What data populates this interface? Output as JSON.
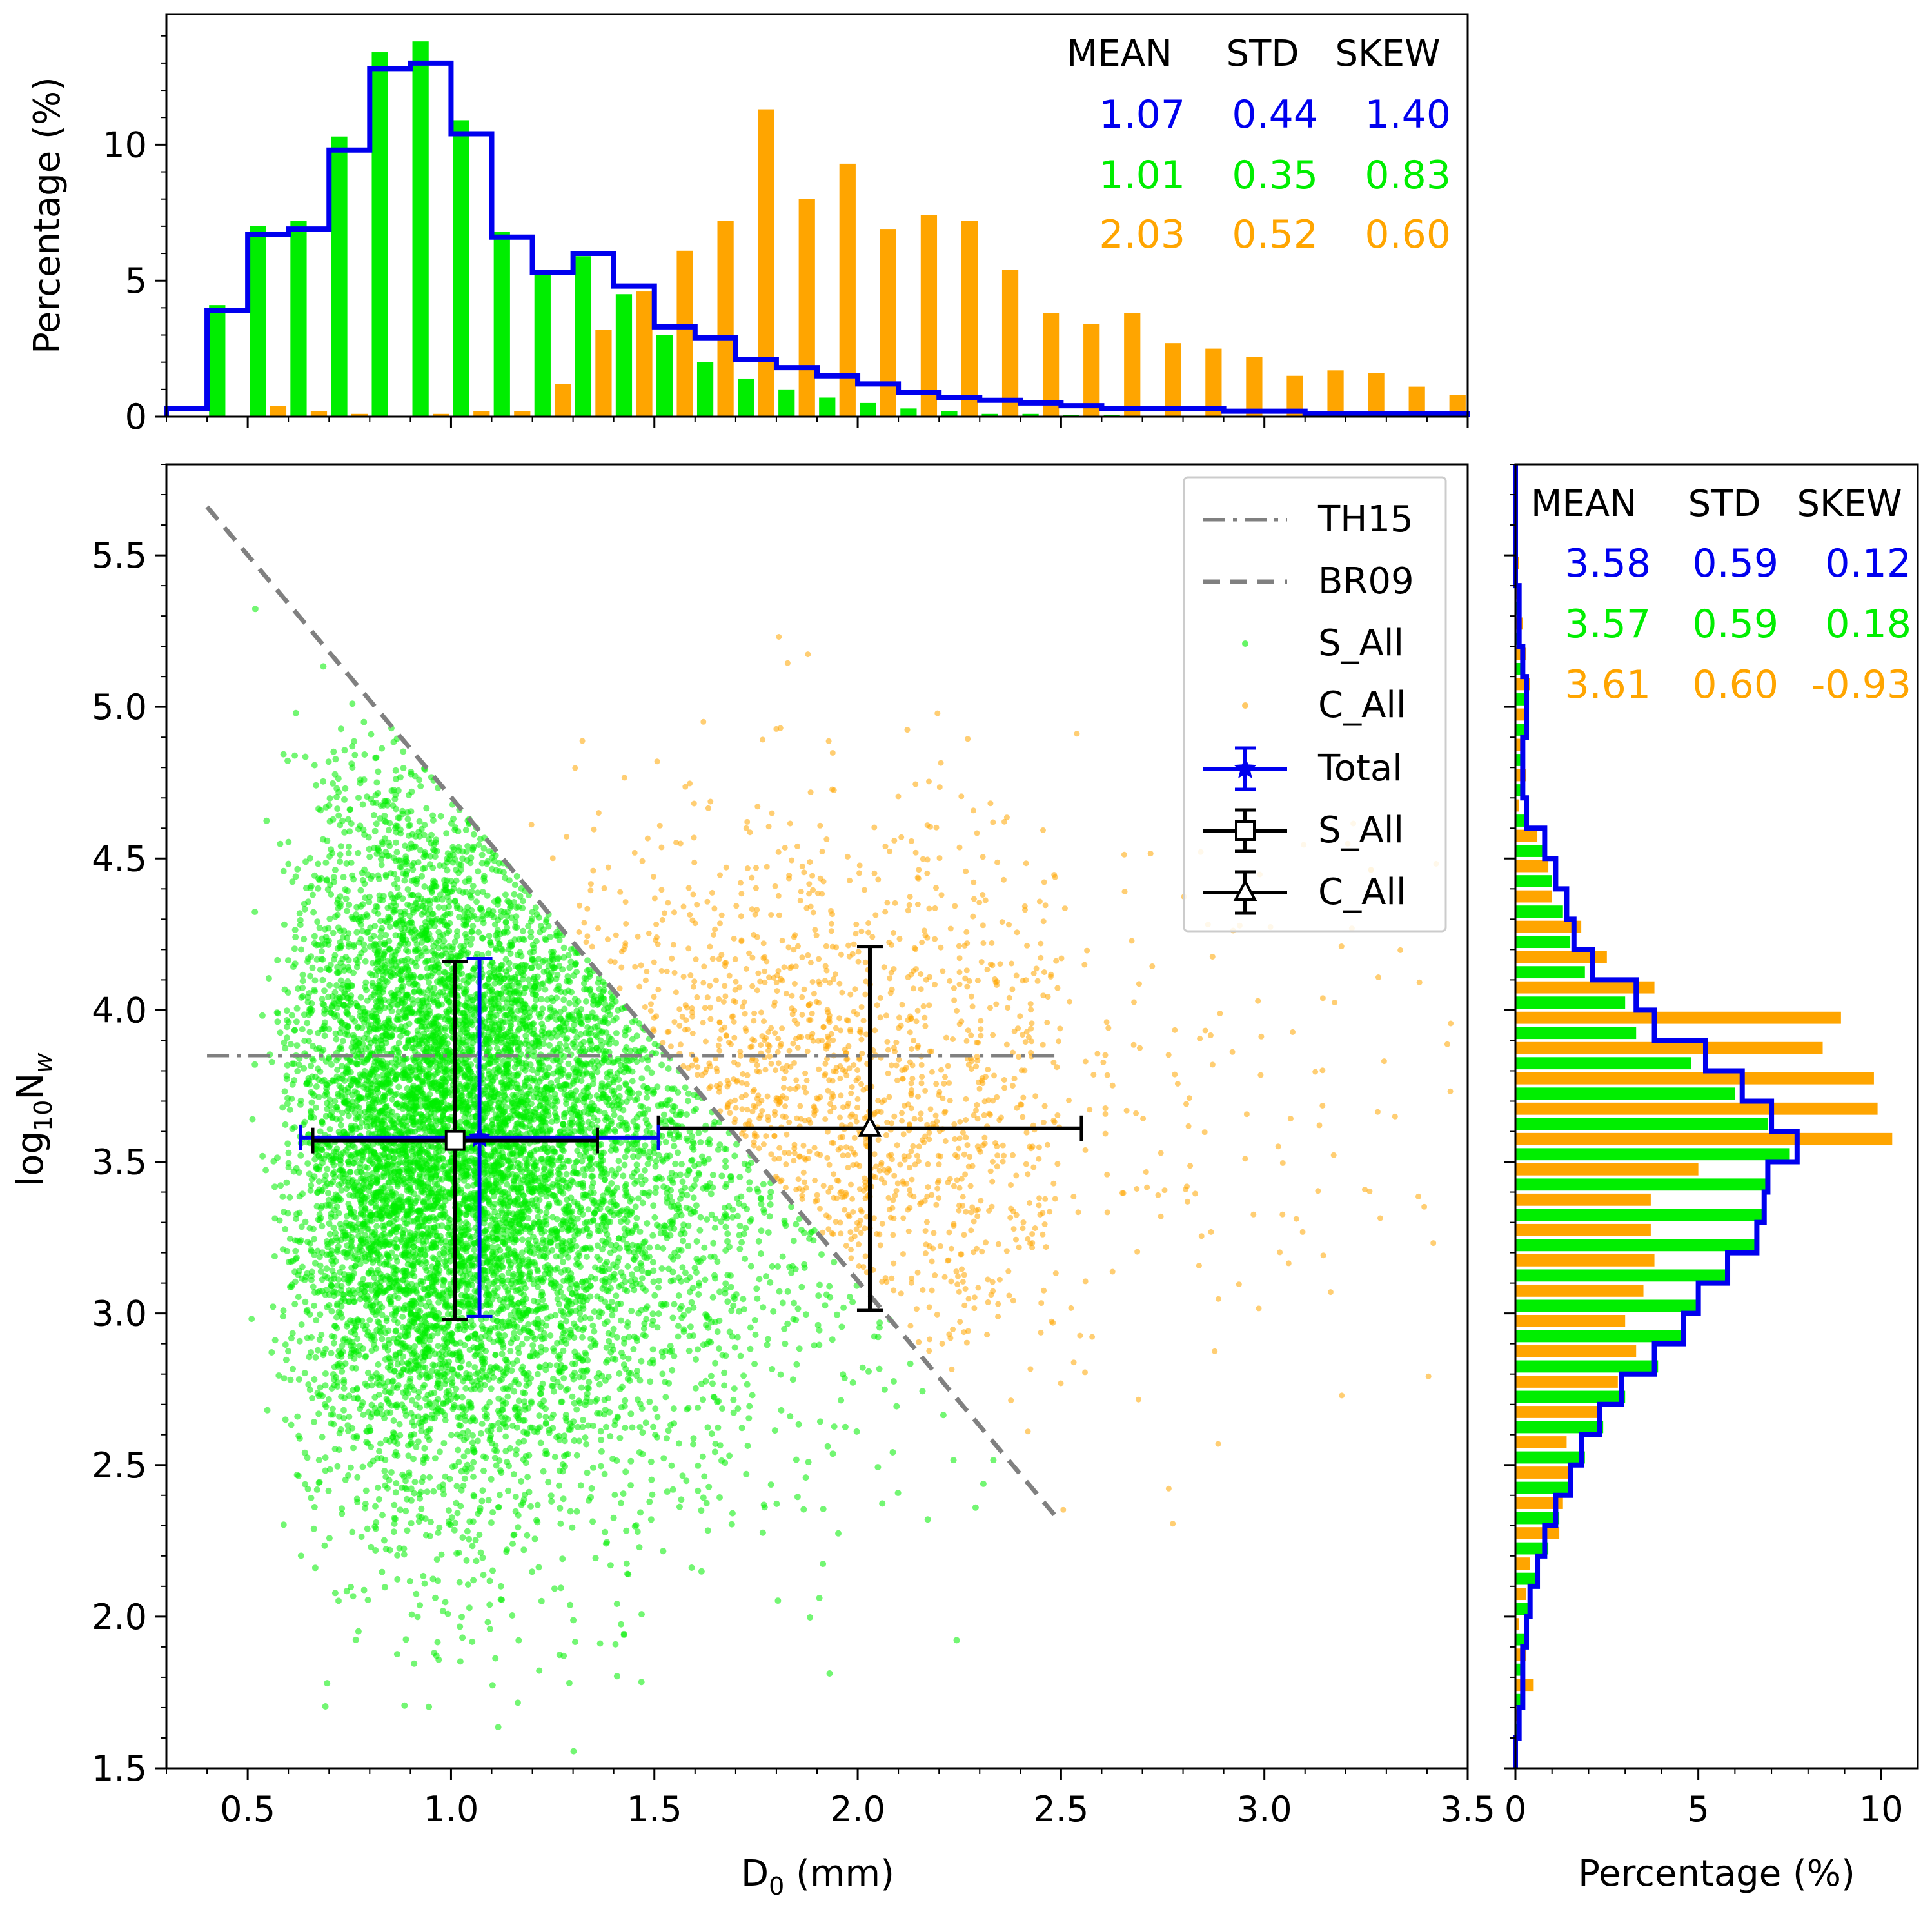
{
  "colors": {
    "total": "#0000ee",
    "stratiform": "#00ee00",
    "convective": "#ffa500",
    "th15": "#808080",
    "br09": "#808080",
    "s_all_marker": "#000000",
    "c_all_marker": "#000000",
    "frame": "#000000"
  },
  "chart_data": [
    {
      "id": "top-histogram",
      "type": "bar",
      "xlabel": "",
      "ylabel": "Percentage (%)",
      "xlim": [
        0.3,
        3.5
      ],
      "ylim": [
        0,
        14.8
      ],
      "xticks": [
        0.5,
        1.0,
        1.5,
        2.0,
        2.5,
        3.0,
        3.5
      ],
      "yticks": [
        0,
        5,
        10
      ],
      "ytick_labels": [
        "0",
        "5",
        "10"
      ],
      "bin_width": 0.1,
      "bin_start": 0.3,
      "series": [
        {
          "name": "Total",
          "style": "step",
          "color_key": "total",
          "values": [
            0.3,
            3.9,
            6.7,
            6.9,
            9.8,
            12.8,
            13.0,
            10.4,
            6.6,
            5.3,
            6.0,
            4.8,
            3.3,
            2.9,
            2.1,
            1.8,
            1.5,
            1.2,
            0.9,
            0.7,
            0.6,
            0.5,
            0.4,
            0.3,
            0.3,
            0.3,
            0.2,
            0.2,
            0.1,
            0.1,
            0.1,
            0.1
          ]
        },
        {
          "name": "S_All",
          "style": "bars",
          "color_key": "stratiform",
          "values": [
            0.0,
            4.1,
            7.0,
            7.2,
            10.3,
            13.4,
            13.8,
            10.9,
            6.8,
            5.4,
            5.9,
            4.5,
            3.0,
            2.0,
            1.4,
            1.0,
            0.7,
            0.5,
            0.3,
            0.2,
            0.1,
            0.1,
            0.05,
            0.05,
            0.0,
            0.0,
            0.0,
            0.0,
            0.0,
            0.0,
            0.0,
            0.0
          ]
        },
        {
          "name": "C_All",
          "style": "bars",
          "color_key": "convective",
          "values": [
            0.0,
            0.0,
            0.4,
            0.2,
            0.1,
            0.0,
            0.1,
            0.2,
            0.2,
            1.2,
            3.2,
            4.6,
            6.1,
            7.2,
            11.3,
            8.0,
            9.3,
            6.9,
            7.4,
            7.2,
            5.4,
            3.8,
            3.4,
            3.8,
            2.7,
            2.5,
            2.2,
            1.5,
            1.7,
            1.6,
            1.1,
            0.8
          ]
        }
      ],
      "stats": {
        "headers": [
          "MEAN",
          "STD",
          "SKEW"
        ],
        "rows": [
          {
            "color_key": "total",
            "values": [
              "1.07",
              "0.44",
              "1.40"
            ]
          },
          {
            "color_key": "stratiform",
            "values": [
              "1.01",
              "0.35",
              "0.83"
            ]
          },
          {
            "color_key": "convective",
            "values": [
              "2.03",
              "0.52",
              "0.60"
            ]
          }
        ]
      }
    },
    {
      "id": "main-scatter",
      "type": "scatter",
      "xlabel": "D",
      "xlabel_sub": "0",
      "xlabel_rest": " (mm)",
      "ylabel_pre": "log",
      "ylabel_sub": "10",
      "ylabel_main": "N",
      "ylabel_italic_sub": "w",
      "xlim": [
        0.3,
        3.5
      ],
      "ylim": [
        1.5,
        5.8
      ],
      "xticks": [
        0.5,
        1.0,
        1.5,
        2.0,
        2.5,
        3.0,
        3.5
      ],
      "xtick_labels": [
        "0.5",
        "1.0",
        "1.5",
        "2.0",
        "2.5",
        "3.0",
        "3.5"
      ],
      "yticks": [
        1.5,
        2.0,
        2.5,
        3.0,
        3.5,
        4.0,
        4.5,
        5.0,
        5.5
      ],
      "ytick_labels": [
        "1.5",
        "2.0",
        "2.5",
        "3.0",
        "3.5",
        "4.0",
        "4.5",
        "5.0",
        "5.5"
      ],
      "lines": [
        {
          "name": "TH15",
          "style": "dashdot",
          "color_key": "th15",
          "x": [
            0.4,
            2.5
          ],
          "y": [
            3.85,
            3.85
          ]
        },
        {
          "name": "BR09",
          "style": "dashed",
          "color_key": "br09",
          "x": [
            0.4,
            2.5
          ],
          "y": [
            5.66,
            2.31
          ]
        }
      ],
      "scatter_clouds": [
        {
          "name": "S_All",
          "color_key": "stratiform",
          "n_points": 9000,
          "x_mean": 1.01,
          "x_std": 0.35,
          "y_mean": 3.57,
          "y_std": 0.59,
          "seed": 17,
          "below_line": "BR09"
        },
        {
          "name": "C_All",
          "color_key": "convective",
          "n_points": 1500,
          "x_mean": 2.03,
          "x_std": 0.52,
          "y_mean": 3.61,
          "y_std": 0.6,
          "seed": 29,
          "above_line": "BR09"
        }
      ],
      "error_bars": [
        {
          "name": "Total",
          "color_key": "total",
          "marker": "star",
          "x": 1.07,
          "y": 3.58,
          "xerr": 0.44,
          "yerr": 0.59
        },
        {
          "name": "S_All",
          "color_key": "s_all_marker",
          "marker": "square",
          "x": 1.01,
          "y": 3.57,
          "xerr": 0.35,
          "yerr": 0.59
        },
        {
          "name": "C_All",
          "color_key": "c_all_marker",
          "marker": "triangle",
          "x": 2.03,
          "y": 3.61,
          "xerr": 0.52,
          "yerr": 0.6
        }
      ],
      "legend": {
        "position": "upper right",
        "entries": [
          {
            "label": "TH15",
            "kind": "dashdot",
            "color_key": "th15"
          },
          {
            "label": "BR09",
            "kind": "dashed",
            "color_key": "br09"
          },
          {
            "label": "S_All",
            "kind": "dot",
            "color_key": "stratiform"
          },
          {
            "label": "C_All",
            "kind": "dot",
            "color_key": "convective"
          },
          {
            "label": "Total",
            "kind": "errorbar-star",
            "color_key": "total"
          },
          {
            "label": "S_All",
            "kind": "errorbar-square",
            "color_key": "s_all_marker"
          },
          {
            "label": "C_All",
            "kind": "errorbar-triangle",
            "color_key": "c_all_marker"
          }
        ]
      }
    },
    {
      "id": "right-histogram",
      "type": "bar",
      "orientation": "horizontal",
      "xlabel": "Percentage (%)",
      "xlim": [
        0,
        11
      ],
      "ylim": [
        1.5,
        5.8
      ],
      "xticks": [
        0,
        5,
        10
      ],
      "xtick_labels": [
        "0",
        "5",
        "10"
      ],
      "bin_width": 0.1,
      "bin_start": 1.5,
      "series": [
        {
          "name": "Total",
          "style": "step",
          "color_key": "total",
          "values": [
            0.0,
            0.1,
            0.2,
            0.2,
            0.3,
            0.4,
            0.6,
            0.8,
            1.1,
            1.5,
            1.8,
            2.3,
            2.9,
            3.8,
            4.6,
            5.0,
            5.8,
            6.6,
            6.8,
            6.9,
            7.7,
            7.0,
            6.2,
            5.2,
            3.8,
            3.3,
            2.1,
            1.6,
            1.4,
            1.1,
            0.8,
            0.3,
            0.2,
            0.2,
            0.3,
            0.3,
            0.2,
            0.1,
            0.1,
            0.0,
            0.0,
            0.0,
            0.0
          ]
        },
        {
          "name": "S_All",
          "style": "bars",
          "color_key": "stratiform",
          "values": [
            0.0,
            0.1,
            0.2,
            0.2,
            0.3,
            0.4,
            0.6,
            0.9,
            1.2,
            1.5,
            1.9,
            2.4,
            3.0,
            3.9,
            4.6,
            5.0,
            5.8,
            6.6,
            6.8,
            6.9,
            7.5,
            6.9,
            6.0,
            4.8,
            3.3,
            3.0,
            1.9,
            1.5,
            1.3,
            1.0,
            0.8,
            0.3,
            0.2,
            0.2,
            0.3,
            0.3,
            0.2,
            0.1,
            0.1,
            0.0,
            0.0,
            0.0,
            0.0
          ]
        },
        {
          "name": "C_All",
          "style": "bars",
          "color_key": "convective",
          "values": [
            0.0,
            0.1,
            0.5,
            0.3,
            0.1,
            0.3,
            0.4,
            1.2,
            1.3,
            1.5,
            1.4,
            2.3,
            2.8,
            3.3,
            3.0,
            3.5,
            3.8,
            3.7,
            3.7,
            5.0,
            10.3,
            9.9,
            9.8,
            8.4,
            8.9,
            3.8,
            2.5,
            1.8,
            1.0,
            0.9,
            0.6,
            0.1,
            0.3,
            0.2,
            0.3,
            0.4,
            0.3,
            0.2,
            0.1,
            0.1,
            0.0,
            0.0,
            0.0
          ]
        }
      ],
      "stats": {
        "headers": [
          "MEAN",
          "STD",
          "SKEW"
        ],
        "rows": [
          {
            "color_key": "total",
            "values": [
              "3.58",
              "0.59",
              "0.12"
            ]
          },
          {
            "color_key": "stratiform",
            "values": [
              "3.57",
              "0.59",
              "0.18"
            ]
          },
          {
            "color_key": "convective",
            "values": [
              "3.61",
              "0.60",
              "-0.93"
            ]
          }
        ]
      }
    }
  ]
}
